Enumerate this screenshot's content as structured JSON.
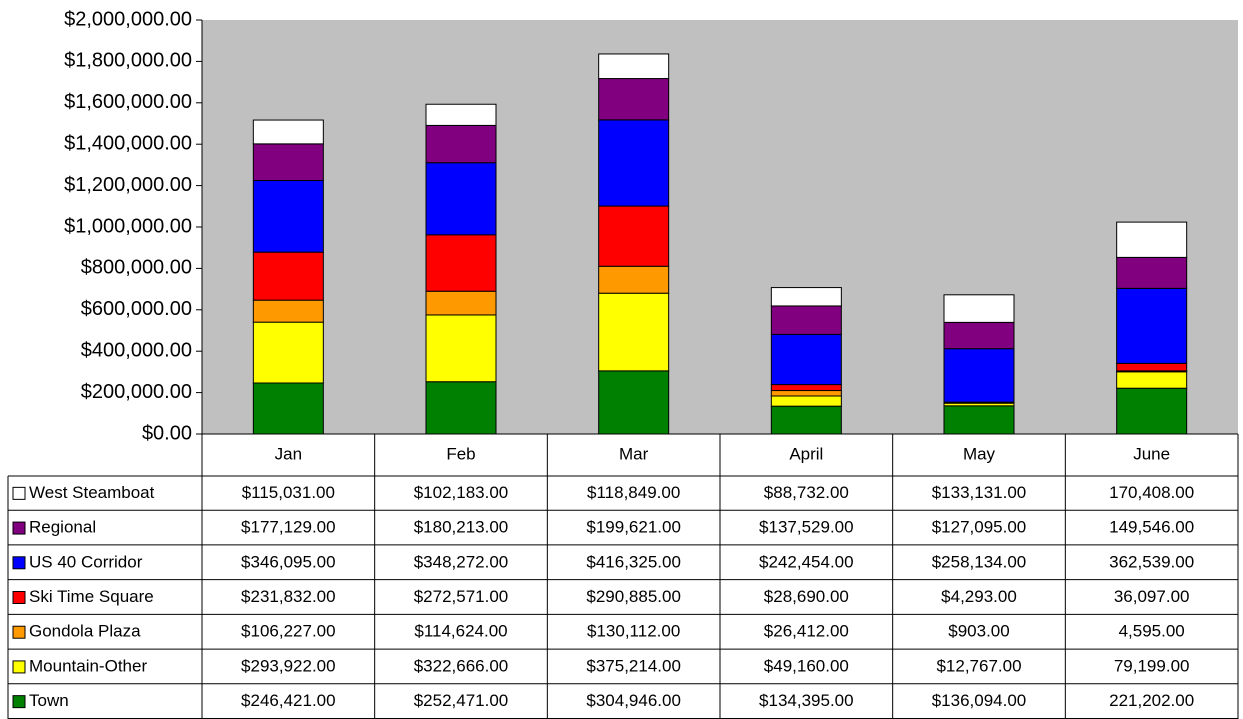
{
  "chart_data": {
    "type": "bar",
    "stacked": true,
    "categories": [
      "Jan",
      "Feb",
      "Mar",
      "April",
      "May",
      "June"
    ],
    "series": [
      {
        "name": "West Steamboat",
        "color": "#ffffff",
        "values": [
          115031,
          102183,
          118849,
          88732,
          133131,
          170408
        ],
        "value_labels": [
          "$115,031.00",
          "$102,183.00",
          "$118,849.00",
          "$88,732.00",
          "$133,131.00",
          "170,408.00"
        ]
      },
      {
        "name": "Regional",
        "color": "#800080",
        "values": [
          177129,
          180213,
          199621,
          137529,
          127095,
          149546
        ],
        "value_labels": [
          "$177,129.00",
          "$180,213.00",
          "$199,621.00",
          "$137,529.00",
          "$127,095.00",
          "149,546.00"
        ]
      },
      {
        "name": "US 40 Corridor",
        "color": "#0000ff",
        "values": [
          346095,
          348272,
          416325,
          242454,
          258134,
          362539
        ],
        "value_labels": [
          "$346,095.00",
          "$348,272.00",
          "$416,325.00",
          "$242,454.00",
          "$258,134.00",
          "362,539.00"
        ]
      },
      {
        "name": "Ski Time Square",
        "color": "#ff0000",
        "values": [
          231832,
          272571,
          290885,
          28690,
          4293,
          36097
        ],
        "value_labels": [
          "$231,832.00",
          "$272,571.00",
          "$290,885.00",
          "$28,690.00",
          "$4,293.00",
          "36,097.00"
        ]
      },
      {
        "name": "Gondola Plaza",
        "color": "#ff9900",
        "values": [
          106227,
          114624,
          130112,
          26412,
          903,
          4595
        ],
        "value_labels": [
          "$106,227.00",
          "$114,624.00",
          "$130,112.00",
          "$26,412.00",
          "$903.00",
          "4,595.00"
        ]
      },
      {
        "name": "Mountain-Other",
        "color": "#ffff00",
        "values": [
          293922,
          322666,
          375214,
          49160,
          12767,
          79199
        ],
        "value_labels": [
          "$293,922.00",
          "$322,666.00",
          "$375,214.00",
          "$49,160.00",
          "$12,767.00",
          "79,199.00"
        ]
      },
      {
        "name": "Town",
        "color": "#008000",
        "values": [
          246421,
          252471,
          304946,
          134395,
          136094,
          221202
        ],
        "value_labels": [
          "$246,421.00",
          "$252,471.00",
          "$304,946.00",
          "$134,395.00",
          "$136,094.00",
          "221,202.00"
        ]
      }
    ],
    "ylim": [
      0,
      2000000
    ],
    "yticks": [
      {
        "value": 0,
        "label": "$0.00"
      },
      {
        "value": 200000,
        "label": "$200,000.00"
      },
      {
        "value": 400000,
        "label": "$400,000.00"
      },
      {
        "value": 600000,
        "label": "$600,000.00"
      },
      {
        "value": 800000,
        "label": "$800,000.00"
      },
      {
        "value": 1000000,
        "label": "$1,000,000.00"
      },
      {
        "value": 1200000,
        "label": "$1,200,000.00"
      },
      {
        "value": 1400000,
        "label": "$1,400,000.00"
      },
      {
        "value": 1600000,
        "label": "$1,600,000.00"
      },
      {
        "value": 1800000,
        "label": "$1,800,000.00"
      },
      {
        "value": 2000000,
        "label": "$2,000,000.00"
      }
    ]
  }
}
